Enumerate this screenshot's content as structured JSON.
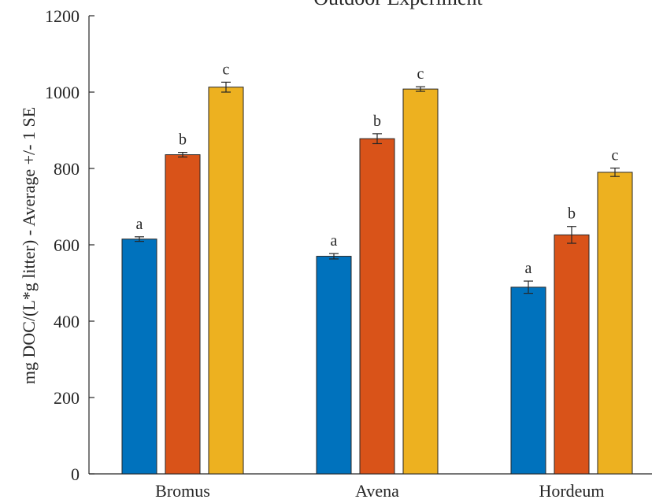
{
  "chart_data": {
    "type": "bar",
    "title": "Outdoor Experiment",
    "xlabel": "",
    "ylabel": "mg DOC/(L*g litter) - Average +/- 1 SE",
    "ylim": [
      0,
      1200
    ],
    "yticks": [
      0,
      200,
      400,
      600,
      800,
      1000,
      1200
    ],
    "grid": false,
    "legend": "none",
    "categories": [
      "Bromus",
      "Avena",
      "Hordeum"
    ],
    "series": [
      {
        "color": "#0072BD",
        "values": [
          615,
          570,
          489
        ],
        "errors": [
          6,
          7,
          16
        ],
        "sig": [
          "a",
          "a",
          "a"
        ]
      },
      {
        "color": "#D95319",
        "values": [
          836,
          878,
          626
        ],
        "errors": [
          6,
          13,
          22
        ],
        "sig": [
          "b",
          "b",
          "b"
        ]
      },
      {
        "color": "#EDB120",
        "values": [
          1013,
          1008,
          790
        ],
        "errors": [
          13,
          6,
          11
        ],
        "sig": [
          "c",
          "c",
          "c"
        ]
      }
    ]
  }
}
